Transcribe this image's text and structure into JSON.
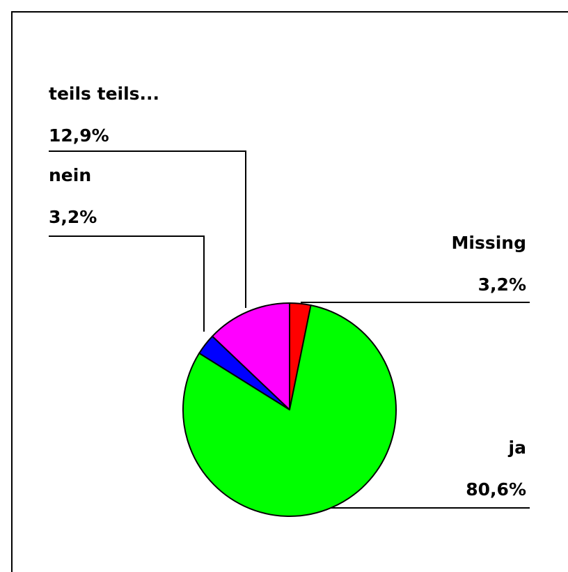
{
  "chart_data": {
    "type": "pie",
    "title": "",
    "slices": [
      {
        "label": "Missing",
        "value": 3.2,
        "value_label": "3,2%",
        "color": "#ff0000"
      },
      {
        "label": "ja",
        "value": 80.6,
        "value_label": "80,6%",
        "color": "#00ff00"
      },
      {
        "label": "nein",
        "value": 3.2,
        "value_label": "3,2%",
        "color": "#0000ff"
      },
      {
        "label": "teils teils...",
        "value": 12.9,
        "value_label": "12,9%",
        "color": "#ff00ff"
      }
    ],
    "start": "12 o'clock",
    "direction": "clockwise",
    "labels_with_leader_lines": true
  }
}
